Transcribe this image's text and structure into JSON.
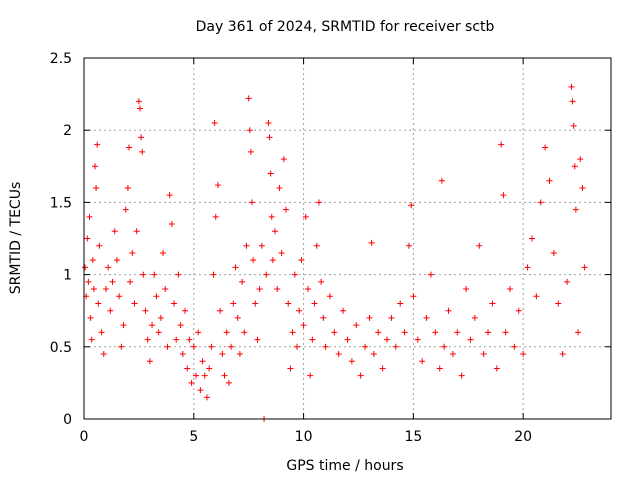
{
  "chart_data": {
    "type": "scatter",
    "title": "Day 361 of 2024, SRMTID for receiver sctb",
    "xlabel": "GPS time / hours",
    "ylabel": "SRMTID / TECUs",
    "xlim": [
      0,
      24
    ],
    "ylim": [
      0,
      2.5
    ],
    "xticks": [
      0,
      5,
      10,
      15,
      20
    ],
    "yticks": [
      0,
      0.5,
      1,
      1.5,
      2,
      2.5
    ],
    "ytick_labels": [
      "0",
      "0.5",
      "1",
      "1.5",
      "2",
      "2.5"
    ],
    "grid": true,
    "marker": "+",
    "marker_color": "#ff0000",
    "series": [
      {
        "name": "SRMTID",
        "points": [
          [
            0.05,
            1.05
          ],
          [
            0.1,
            0.85
          ],
          [
            0.15,
            1.25
          ],
          [
            0.2,
            0.95
          ],
          [
            0.25,
            1.4
          ],
          [
            0.3,
            0.7
          ],
          [
            0.35,
            0.55
          ],
          [
            0.4,
            1.1
          ],
          [
            0.45,
            0.9
          ],
          [
            0.5,
            1.75
          ],
          [
            0.55,
            1.6
          ],
          [
            0.6,
            1.9
          ],
          [
            0.65,
            0.8
          ],
          [
            0.7,
            1.2
          ],
          [
            0.8,
            0.6
          ],
          [
            0.9,
            0.45
          ],
          [
            1.0,
            0.9
          ],
          [
            1.1,
            1.05
          ],
          [
            1.2,
            0.75
          ],
          [
            1.3,
            0.95
          ],
          [
            1.4,
            1.3
          ],
          [
            1.5,
            1.1
          ],
          [
            1.6,
            0.85
          ],
          [
            1.7,
            0.5
          ],
          [
            1.8,
            0.65
          ],
          [
            1.9,
            1.45
          ],
          [
            2.0,
            1.6
          ],
          [
            2.05,
            1.88
          ],
          [
            2.1,
            0.95
          ],
          [
            2.2,
            1.15
          ],
          [
            2.3,
            0.8
          ],
          [
            2.4,
            1.3
          ],
          [
            2.5,
            2.2
          ],
          [
            2.55,
            2.15
          ],
          [
            2.6,
            1.95
          ],
          [
            2.65,
            1.85
          ],
          [
            2.7,
            1.0
          ],
          [
            2.8,
            0.75
          ],
          [
            2.9,
            0.55
          ],
          [
            3.0,
            0.4
          ],
          [
            3.1,
            0.65
          ],
          [
            3.2,
            1.0
          ],
          [
            3.3,
            0.85
          ],
          [
            3.4,
            0.6
          ],
          [
            3.5,
            0.7
          ],
          [
            3.6,
            1.15
          ],
          [
            3.7,
            0.9
          ],
          [
            3.8,
            0.5
          ],
          [
            3.9,
            1.55
          ],
          [
            4.0,
            1.35
          ],
          [
            4.1,
            0.8
          ],
          [
            4.2,
            0.55
          ],
          [
            4.3,
            1.0
          ],
          [
            4.4,
            0.65
          ],
          [
            4.5,
            0.45
          ],
          [
            4.6,
            0.75
          ],
          [
            4.7,
            0.35
          ],
          [
            4.8,
            0.55
          ],
          [
            4.9,
            0.25
          ],
          [
            5.0,
            0.5
          ],
          [
            5.1,
            0.3
          ],
          [
            5.2,
            0.6
          ],
          [
            5.3,
            0.2
          ],
          [
            5.4,
            0.4
          ],
          [
            5.5,
            0.3
          ],
          [
            5.6,
            0.15
          ],
          [
            5.7,
            0.35
          ],
          [
            5.8,
            0.5
          ],
          [
            5.9,
            1.0
          ],
          [
            5.95,
            2.05
          ],
          [
            6.0,
            1.4
          ],
          [
            6.1,
            1.62
          ],
          [
            6.2,
            0.75
          ],
          [
            6.3,
            0.45
          ],
          [
            6.4,
            0.3
          ],
          [
            6.5,
            0.6
          ],
          [
            6.6,
            0.25
          ],
          [
            6.7,
            0.5
          ],
          [
            6.8,
            0.8
          ],
          [
            6.9,
            1.05
          ],
          [
            7.0,
            0.7
          ],
          [
            7.1,
            0.45
          ],
          [
            7.2,
            0.95
          ],
          [
            7.3,
            0.6
          ],
          [
            7.4,
            1.2
          ],
          [
            7.5,
            2.22
          ],
          [
            7.55,
            2.0
          ],
          [
            7.6,
            1.85
          ],
          [
            7.65,
            1.5
          ],
          [
            7.7,
            1.1
          ],
          [
            7.8,
            0.8
          ],
          [
            7.9,
            0.55
          ],
          [
            8.0,
            0.9
          ],
          [
            8.1,
            1.2
          ],
          [
            8.2,
            0.0
          ],
          [
            8.3,
            1.0
          ],
          [
            8.4,
            2.05
          ],
          [
            8.45,
            1.95
          ],
          [
            8.5,
            1.7
          ],
          [
            8.55,
            1.4
          ],
          [
            8.6,
            1.1
          ],
          [
            8.7,
            1.3
          ],
          [
            8.8,
            0.9
          ],
          [
            8.9,
            1.6
          ],
          [
            9.0,
            1.15
          ],
          [
            9.1,
            1.8
          ],
          [
            9.2,
            1.45
          ],
          [
            9.3,
            0.8
          ],
          [
            9.4,
            0.35
          ],
          [
            9.5,
            0.6
          ],
          [
            9.6,
            1.0
          ],
          [
            9.7,
            0.5
          ],
          [
            9.8,
            0.75
          ],
          [
            9.9,
            1.1
          ],
          [
            10.0,
            0.65
          ],
          [
            10.1,
            1.4
          ],
          [
            10.2,
            0.9
          ],
          [
            10.3,
            0.3
          ],
          [
            10.4,
            0.55
          ],
          [
            10.5,
            0.8
          ],
          [
            10.6,
            1.2
          ],
          [
            10.7,
            1.5
          ],
          [
            10.8,
            0.95
          ],
          [
            10.9,
            0.7
          ],
          [
            11.0,
            0.5
          ],
          [
            11.2,
            0.85
          ],
          [
            11.4,
            0.6
          ],
          [
            11.6,
            0.45
          ],
          [
            11.8,
            0.75
          ],
          [
            12.0,
            0.55
          ],
          [
            12.2,
            0.4
          ],
          [
            12.4,
            0.65
          ],
          [
            12.6,
            0.3
          ],
          [
            12.8,
            0.5
          ],
          [
            13.0,
            0.7
          ],
          [
            13.1,
            1.22
          ],
          [
            13.2,
            0.45
          ],
          [
            13.4,
            0.6
          ],
          [
            13.6,
            0.35
          ],
          [
            13.8,
            0.55
          ],
          [
            14.0,
            0.7
          ],
          [
            14.2,
            0.5
          ],
          [
            14.4,
            0.8
          ],
          [
            14.6,
            0.6
          ],
          [
            14.8,
            1.2
          ],
          [
            14.9,
            1.48
          ],
          [
            15.0,
            0.85
          ],
          [
            15.2,
            0.55
          ],
          [
            15.4,
            0.4
          ],
          [
            15.6,
            0.7
          ],
          [
            15.8,
            1.0
          ],
          [
            16.0,
            0.6
          ],
          [
            16.2,
            0.35
          ],
          [
            16.3,
            1.65
          ],
          [
            16.4,
            0.5
          ],
          [
            16.6,
            0.75
          ],
          [
            16.8,
            0.45
          ],
          [
            17.0,
            0.6
          ],
          [
            17.2,
            0.3
          ],
          [
            17.4,
            0.9
          ],
          [
            17.6,
            0.55
          ],
          [
            17.8,
            0.7
          ],
          [
            18.0,
            1.2
          ],
          [
            18.2,
            0.45
          ],
          [
            18.4,
            0.6
          ],
          [
            18.6,
            0.8
          ],
          [
            18.8,
            0.35
          ],
          [
            19.0,
            1.9
          ],
          [
            19.1,
            1.55
          ],
          [
            19.2,
            0.6
          ],
          [
            19.4,
            0.9
          ],
          [
            19.6,
            0.5
          ],
          [
            19.8,
            0.75
          ],
          [
            20.0,
            0.45
          ],
          [
            20.2,
            1.05
          ],
          [
            20.4,
            1.25
          ],
          [
            20.6,
            0.85
          ],
          [
            20.8,
            1.5
          ],
          [
            21.0,
            1.88
          ],
          [
            21.2,
            1.65
          ],
          [
            21.4,
            1.15
          ],
          [
            21.6,
            0.8
          ],
          [
            21.8,
            0.45
          ],
          [
            22.0,
            0.95
          ],
          [
            22.2,
            2.3
          ],
          [
            22.25,
            2.2
          ],
          [
            22.3,
            2.03
          ],
          [
            22.35,
            1.75
          ],
          [
            22.4,
            1.45
          ],
          [
            22.5,
            0.6
          ],
          [
            22.6,
            1.8
          ],
          [
            22.7,
            1.6
          ],
          [
            22.8,
            1.05
          ]
        ]
      }
    ]
  }
}
